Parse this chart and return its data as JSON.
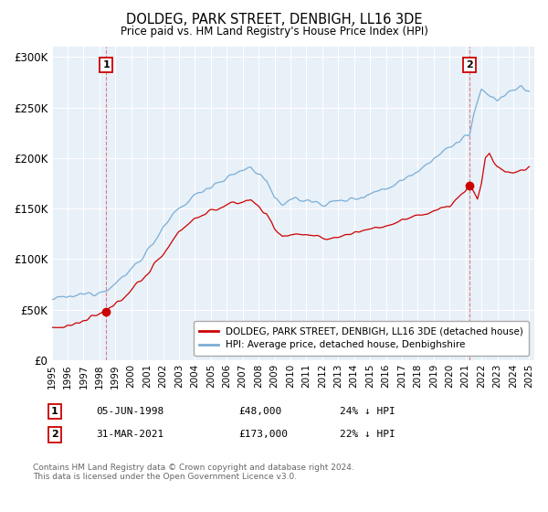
{
  "title": "DOLDEG, PARK STREET, DENBIGH, LL16 3DE",
  "subtitle": "Price paid vs. HM Land Registry's House Price Index (HPI)",
  "ylim": [
    0,
    310000
  ],
  "yticks": [
    0,
    50000,
    100000,
    150000,
    200000,
    250000,
    300000
  ],
  "ytick_labels": [
    "£0",
    "£50K",
    "£100K",
    "£150K",
    "£200K",
    "£250K",
    "£300K"
  ],
  "sale1_year": 1998.417,
  "sale1_price": 48000,
  "sale2_year": 2021.25,
  "sale2_price": 173000,
  "legend1": "DOLDEG, PARK STREET, DENBIGH, LL16 3DE (detached house)",
  "legend2": "HPI: Average price, detached house, Denbighshire",
  "line_color_price": "#cc0000",
  "line_color_hpi": "#7aaed6",
  "marker_color": "#cc0000",
  "vline_color": "#cc3333",
  "box_color": "#cc0000",
  "bg_plot": "#e8f0f8",
  "bg_fig": "#ffffff",
  "grid_color": "#ffffff",
  "footer": "Contains HM Land Registry data © Crown copyright and database right 2024.\nThis data is licensed under the Open Government Licence v3.0."
}
